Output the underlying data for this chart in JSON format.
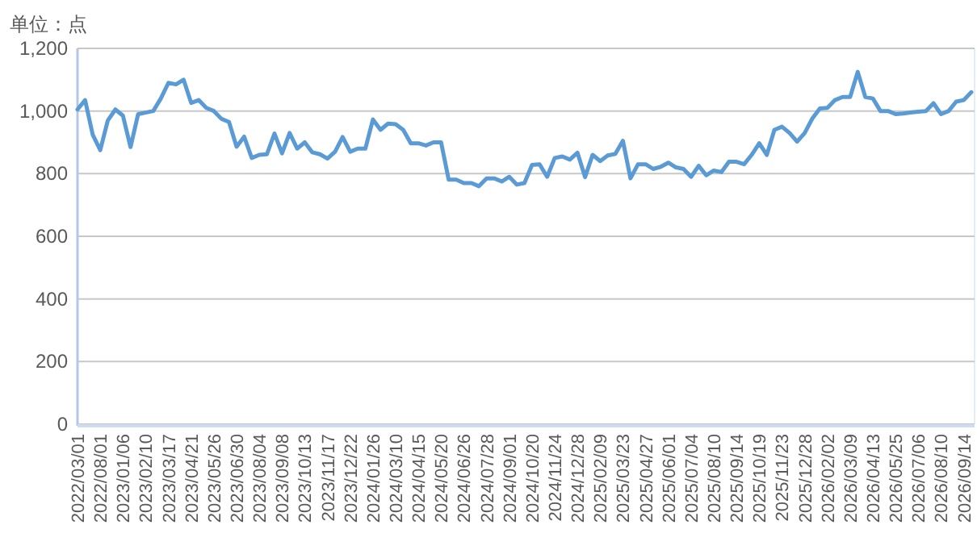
{
  "chart_data": {
    "type": "line",
    "ylabel": "单位：点",
    "color": "#5b9bd5",
    "grid": "y",
    "ylim": [
      0,
      1200
    ],
    "yticks": [
      0,
      200,
      400,
      600,
      800,
      {
        "value": 1000,
        "label": "1,000"
      },
      {
        "value": 1200,
        "label": "1,200"
      }
    ],
    "categories": [
      "2022/03/01",
      null,
      null,
      "2022/08/01",
      null,
      null,
      "2023/01/06",
      null,
      null,
      "2023/02/10",
      null,
      null,
      "2023/03/17",
      null,
      null,
      "2023/04/21",
      null,
      null,
      "2023/05/26",
      null,
      null,
      "2023/06/30",
      null,
      null,
      "2023/08/04",
      null,
      null,
      "2023/09/08",
      null,
      null,
      "2023/10/13",
      null,
      null,
      "2023/11/17",
      null,
      null,
      "2023/12/22",
      null,
      null,
      "2024/01/26",
      null,
      null,
      "2024/03/10",
      null,
      null,
      "2024/04/15",
      null,
      null,
      "2024/05/20",
      null,
      null,
      "2024/06/26",
      null,
      null,
      "2024/07/28",
      null,
      null,
      "2024/09/01",
      null,
      null,
      "2024/10/20",
      null,
      null,
      "2024/11/24",
      null,
      null,
      "2024/12/28",
      null,
      null,
      "2025/02/09",
      null,
      null,
      "2025/03/23",
      null,
      null,
      "2025/04/27",
      null,
      null,
      "2025/06/01",
      null,
      null,
      "2025/07/04",
      null,
      null,
      "2025/08/10",
      null,
      null,
      "2025/09/14",
      null,
      null,
      "2025/10/19",
      null,
      null,
      "2025/11/23",
      null,
      null,
      "2025/12/28",
      null,
      null,
      "2026/02/02",
      null,
      null,
      "2026/03/09",
      null,
      null,
      "2026/04/13",
      null,
      null,
      "2026/05/25",
      null,
      null,
      "2026/07/06",
      null,
      null,
      "2026/08/10",
      null,
      null,
      "2026/09/14",
      null
    ],
    "values": [
      1005,
      1035,
      925,
      875,
      970,
      1005,
      985,
      885,
      990,
      995,
      1000,
      1040,
      1090,
      1085,
      1100,
      1026,
      1035,
      1010,
      1000,
      975,
      965,
      886,
      918,
      850,
      860,
      862,
      928,
      865,
      930,
      880,
      900,
      868,
      862,
      848,
      870,
      917,
      870,
      880,
      880,
      973,
      940,
      960,
      958,
      940,
      897,
      897,
      890,
      900,
      900,
      781,
      781,
      770,
      770,
      760,
      785,
      785,
      775,
      790,
      765,
      770,
      828,
      830,
      790,
      850,
      855,
      845,
      867,
      789,
      860,
      840,
      858,
      863,
      905,
      785,
      830,
      830,
      815,
      822,
      835,
      820,
      815,
      790,
      825,
      795,
      810,
      805,
      838,
      838,
      830,
      860,
      897,
      860,
      940,
      950,
      930,
      902,
      930,
      976,
      1008,
      1010,
      1035,
      1045,
      1045,
      1125,
      1045,
      1040,
      1000,
      1000,
      990,
      992,
      995,
      998,
      1000,
      1025,
      990,
      1000,
      1030,
      1035,
      1060
    ]
  }
}
